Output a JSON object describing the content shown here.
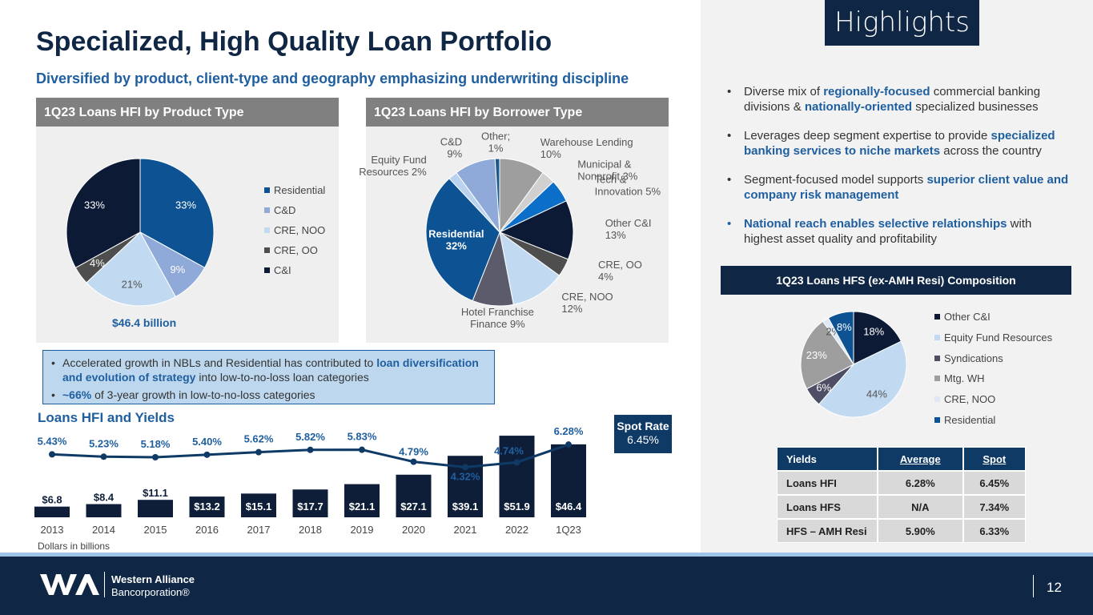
{
  "header": {
    "title": "Specialized, High Quality Loan Portfolio",
    "subtitle": "Diversified by product, client-type and geography emphasizing underwriting discipline",
    "highlights_tag": "Highlights"
  },
  "colors": {
    "navy": "#0f2744",
    "blue": "#1f5fa0",
    "light_blue": "#bdd7ee",
    "grey_header": "#808080"
  },
  "product_panel": {
    "header": "1Q23 Loans HFI by Product Type",
    "total": "$46.4 billion",
    "legend": [
      "Residential",
      "C&D",
      "CRE, NOO",
      "CRE, OO",
      "C&I"
    ],
    "slice_labels": [
      "33%",
      "9%",
      "21%",
      "4%",
      "33%"
    ]
  },
  "borrower_panel": {
    "header": "1Q23 Loans HFI by Borrower Type",
    "labels": [
      "Warehouse Lending 10%",
      "Municipal & Nonprofit 3%",
      "Tech & Innovation 5%",
      "Other C&I 13%",
      "CRE, OO 4%",
      "CRE, NOO 12%",
      "Hotel Franchise Finance 9%",
      "Residential 32%",
      "Equity Fund Resources 2%",
      "C&D 9%",
      "Other; 1%"
    ]
  },
  "callout": {
    "item1_pre": "Accelerated growth in NBLs and Residential has contributed to ",
    "item1_bold": "loan diversification and evolution of strategy",
    "item1_post": " into low-to-no-loss loan categories",
    "item2_bold": "~66%",
    "item2_post": " of 3-year growth in low-to-no-loss categories"
  },
  "loans_hfi": {
    "title": "Loans HFI and Yields",
    "note": "Dollars in billions",
    "spot_rate_label": "Spot Rate",
    "spot_rate_value": "6.45%"
  },
  "chart_data": [
    {
      "type": "pie",
      "title": "1Q23 Loans HFI by Product Type",
      "categories": [
        "Residential",
        "C&D",
        "CRE, NOO",
        "CRE, OO",
        "C&I"
      ],
      "values": [
        33,
        9,
        21,
        4,
        33
      ],
      "colors": [
        "#0d5394",
        "#8fa9d8",
        "#c1d9f1",
        "#4e4e4e",
        "#0c1a35"
      ]
    },
    {
      "type": "pie",
      "title": "1Q23 Loans HFI by Borrower Type",
      "categories": [
        "Warehouse Lending",
        "Municipal & Nonprofit",
        "Tech & Innovation",
        "Other C&I",
        "CRE, OO",
        "CRE, NOO",
        "Hotel Franchise Finance",
        "Residential",
        "Equity Fund Resources",
        "C&D",
        "Other"
      ],
      "values": [
        10,
        3,
        5,
        13,
        4,
        12,
        9,
        32,
        2,
        9,
        1
      ],
      "colors": [
        "#9e9e9e",
        "#d0d0d0",
        "#0b6fc9",
        "#0c1a35",
        "#4e4e4e",
        "#c1d9f1",
        "#5b5b6b",
        "#0d5394",
        "#b9d2ee",
        "#8fa9d8",
        "#1e5b8c"
      ]
    },
    {
      "type": "bar",
      "title": "Loans HFI and Yields",
      "categories": [
        "2013",
        "2014",
        "2015",
        "2016",
        "2017",
        "2018",
        "2019",
        "2020",
        "2021",
        "2022",
        "1Q23"
      ],
      "series": [
        {
          "name": "Loans HFI",
          "values": [
            6.8,
            8.4,
            11.1,
            13.2,
            15.1,
            17.7,
            21.1,
            27.1,
            39.1,
            51.9,
            46.4
          ],
          "labels": [
            "$6.8",
            "$8.4",
            "$11.1",
            "$13.2",
            "$15.1",
            "$17.7",
            "$21.1",
            "$27.1",
            "$39.1",
            "$51.9",
            "$46.4"
          ]
        },
        {
          "name": "Yields",
          "values": [
            5.43,
            5.23,
            5.18,
            5.4,
            5.62,
            5.82,
            5.83,
            4.79,
            4.32,
            4.74,
            6.28
          ],
          "labels": [
            "5.43%",
            "5.23%",
            "5.18%",
            "5.40%",
            "5.62%",
            "5.82%",
            "5.83%",
            "4.79%",
            "4.32%",
            "4.74%",
            "6.28%"
          ]
        }
      ]
    },
    {
      "type": "pie",
      "title": "1Q23 Loans HFS (ex-AMH Resi) Composition",
      "categories": [
        "Other C&I",
        "Equity Fund Resources",
        "Syndications",
        "Mtg. WH",
        "CRE, NOO",
        "Residential"
      ],
      "values": [
        18,
        44,
        6,
        23,
        2,
        8
      ],
      "colors": [
        "#0c1a35",
        "#c1d9f1",
        "#4e4e66",
        "#9e9e9e",
        "#dfe9f5",
        "#0d5394"
      ]
    }
  ],
  "highlights": {
    "b1_pre": "Diverse mix of ",
    "b1_bold1": "regionally-focused",
    "b1_mid": " commercial banking divisions & ",
    "b1_bold2": "nationally-oriented",
    "b1_post": " specialized businesses",
    "b2_pre": "Leverages deep segment expertise to provide ",
    "b2_bold": "specialized banking services to niche markets",
    "b2_post": " across the country",
    "b3_pre": "Segment-focused model supports ",
    "b3_bold": "superior client value and company risk management",
    "b4_bold": "National reach enables selective relationships",
    "b4_post": " with highest asset quality and profitability"
  },
  "hfs": {
    "header": "1Q23 Loans HFS (ex-AMH Resi) Composition",
    "slice_labels": [
      "18%",
      "44%",
      "6%",
      "23%",
      "2%",
      "8%"
    ]
  },
  "yields_table": {
    "headers": [
      "Yields",
      "Average",
      "Spot"
    ],
    "rows": [
      [
        "Loans HFI",
        "6.28%",
        "6.45%"
      ],
      [
        "Loans HFS",
        "N/A",
        "7.34%"
      ],
      [
        "HFS – AMH Resi",
        "5.90%",
        "6.33%"
      ]
    ]
  },
  "footer": {
    "company": "Western Alliance",
    "company_sub": "Bancorporation®",
    "page_number": "12"
  }
}
